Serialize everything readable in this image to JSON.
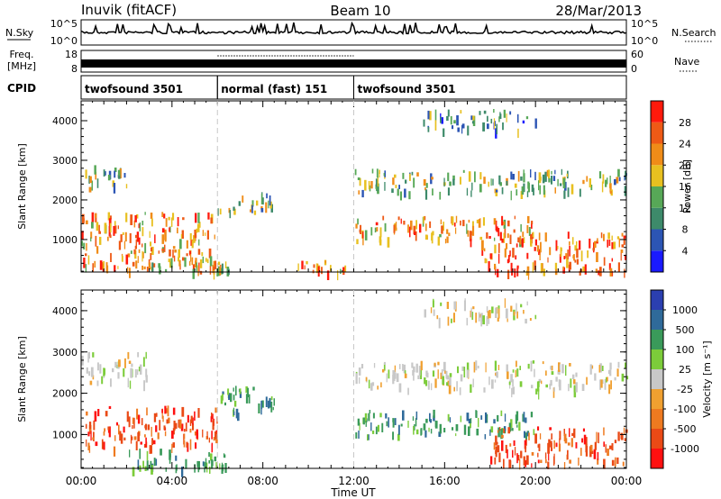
{
  "header": {
    "station": "Inuvik (fitACF)",
    "beam": "Beam 10",
    "date": "28/Mar/2013"
  },
  "noise_panel": {
    "left_label": "N.Sky",
    "left_ticks": [
      "10^5",
      "10^0"
    ],
    "right_label": "N.Search",
    "right_ticks": [
      "10^5",
      "10^0"
    ]
  },
  "freq_panel": {
    "left_label_1": "Freq.",
    "left_label_2": "[MHz]",
    "left_ticks": [
      "18",
      "8"
    ],
    "right_label": "Nave",
    "right_ticks": [
      "60",
      "0"
    ]
  },
  "cpid": {
    "label": "CPID",
    "segments": [
      {
        "label": "twofsound 3501",
        "start_hour": 0,
        "end_hour": 6
      },
      {
        "label": "normal (fast) 151",
        "start_hour": 6,
        "end_hour": 12
      },
      {
        "label": "twofsound 3501",
        "start_hour": 12,
        "end_hour": 24
      }
    ]
  },
  "x_axis": {
    "label": "Time UT",
    "ticks": [
      "00:00",
      "04:00",
      "08:00",
      "12:00",
      "16:00",
      "20:00",
      "00:00"
    ]
  },
  "colors": {
    "power": [
      "#1a1aff",
      "#2c55b4",
      "#3d8a6a",
      "#57a857",
      "#e8c020",
      "#f08c18",
      "#ee5a16",
      "#ff1a0c"
    ],
    "velocity": [
      "#2b3fb0",
      "#2f6a9a",
      "#3a9a5a",
      "#7ccc3a",
      "#c8c8c8",
      "#f0a030",
      "#ee7a20",
      "#ea4a16",
      "#ff1010"
    ]
  },
  "chart_data": [
    {
      "type": "heatmap",
      "title": "",
      "xlabel": "Time UT",
      "ylabel": "Slant Range [km]",
      "xlim": [
        0,
        24
      ],
      "ylim": [
        180,
        4500
      ],
      "yticks": [
        "1000",
        "2000",
        "3000",
        "4000"
      ],
      "colorbar": {
        "label": "Power [dB]",
        "ticks": [
          "4",
          "8",
          "12",
          "16",
          "20",
          "24",
          "28"
        ],
        "range": [
          0,
          32
        ]
      },
      "echo_regions": [
        {
          "t0": 0.0,
          "t1": 6.0,
          "r0": 300,
          "r1": 1700,
          "level": 24
        },
        {
          "t0": 0.0,
          "t1": 2.0,
          "r0": 2300,
          "r1": 2900,
          "level": 14
        },
        {
          "t0": 2.0,
          "t1": 6.5,
          "r0": 200,
          "r1": 600,
          "level": 20
        },
        {
          "t0": 6.0,
          "t1": 8.5,
          "r0": 1700,
          "r1": 2200,
          "level": 16
        },
        {
          "t0": 9.5,
          "t1": 12.0,
          "r0": 200,
          "r1": 500,
          "level": 22
        },
        {
          "t0": 12.0,
          "t1": 24.0,
          "r0": 2200,
          "r1": 2800,
          "level": 14
        },
        {
          "t0": 12.0,
          "t1": 20.0,
          "r0": 1000,
          "r1": 1600,
          "level": 22
        },
        {
          "t0": 17.5,
          "t1": 24.0,
          "r0": 200,
          "r1": 1200,
          "level": 26
        },
        {
          "t0": 15.0,
          "t1": 20.0,
          "r0": 3800,
          "r1": 4300,
          "level": 10
        }
      ]
    },
    {
      "type": "heatmap",
      "title": "",
      "xlabel": "Time UT",
      "ylabel": "Slant Range [km]",
      "xlim": [
        0,
        24
      ],
      "ylim": [
        180,
        4500
      ],
      "yticks": [
        "1000",
        "2000",
        "3000",
        "4000"
      ],
      "colorbar": {
        "label": "Velocity [m s⁻¹]",
        "ticks": [
          "1000",
          "500",
          "100",
          "25",
          "-25",
          "-100",
          "-500",
          "-1000"
        ]
      },
      "echo_regions": [
        {
          "t0": 0.0,
          "t1": 6.0,
          "r0": 700,
          "r1": 1700,
          "level": -300
        },
        {
          "t0": 0.0,
          "t1": 3.0,
          "r0": 2300,
          "r1": 3000,
          "level": 0
        },
        {
          "t0": 6.0,
          "t1": 8.5,
          "r0": 1500,
          "r1": 2200,
          "level": 200
        },
        {
          "t0": 2.0,
          "t1": 6.5,
          "r0": 200,
          "r1": 700,
          "level": 60
        },
        {
          "t0": 12.0,
          "t1": 24.0,
          "r0": 2100,
          "r1": 2800,
          "level": 0
        },
        {
          "t0": 12.0,
          "t1": 20.0,
          "r0": 1000,
          "r1": 1600,
          "level": 150
        },
        {
          "t0": 18.0,
          "t1": 24.0,
          "r0": 300,
          "r1": 1200,
          "level": -400
        },
        {
          "t0": 15.0,
          "t1": 20.0,
          "r0": 3800,
          "r1": 4300,
          "level": 0
        }
      ]
    }
  ]
}
